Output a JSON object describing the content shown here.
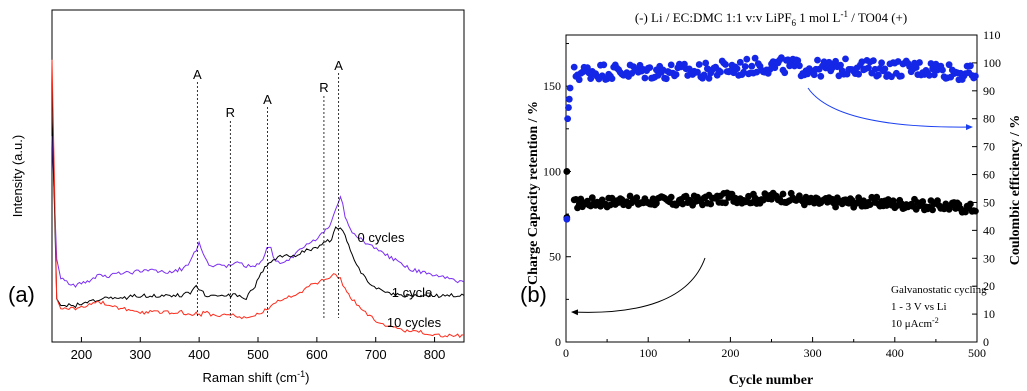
{
  "chart_data": [
    {
      "type": "line",
      "panel_label": "(a)",
      "xlabel": "Raman shift (cm",
      "xlabel_sup": "-1",
      "xlabel_end": ")",
      "ylabel": "Intensity (a.u.)",
      "xlim": [
        150,
        850
      ],
      "xticks": [
        "200",
        "300",
        "400",
        "500",
        "600",
        "700",
        "800"
      ],
      "xtick_values": [
        200,
        300,
        400,
        500,
        600,
        700,
        800
      ],
      "y_ticks_shown": false,
      "grid": false,
      "x": [
        150,
        158,
        165,
        175,
        190,
        210,
        230,
        250,
        270,
        290,
        310,
        330,
        350,
        370,
        385,
        395,
        400,
        410,
        420,
        435,
        450,
        465,
        480,
        495,
        505,
        515,
        522,
        530,
        545,
        560,
        575,
        590,
        605,
        615,
        625,
        632,
        640,
        648,
        660,
        675,
        690,
        705,
        720,
        740,
        760,
        780,
        800,
        825,
        850
      ],
      "series": [
        {
          "name": "0 cycles",
          "color": "#7b2ff2",
          "values": [
            38,
            75,
            81,
            82,
            83,
            82,
            80,
            80,
            79,
            79,
            78,
            79,
            79,
            78,
            76,
            72,
            70,
            75,
            77,
            77,
            77,
            76,
            77,
            77,
            76,
            72,
            72,
            76,
            76,
            74,
            72,
            70,
            68,
            66,
            64,
            60,
            56,
            62,
            67,
            69,
            71,
            72,
            74,
            76,
            78,
            79,
            80,
            81,
            82
          ]
        },
        {
          "name": "1 cycle",
          "color": "#000000",
          "values": [
            30,
            87,
            89,
            89,
            89,
            88,
            87,
            87,
            87,
            86,
            86,
            86,
            86,
            86,
            85,
            83,
            84,
            86,
            86,
            86,
            86,
            86,
            87,
            83,
            79,
            77,
            76,
            75,
            74,
            74,
            73,
            72,
            71,
            70,
            69,
            65,
            66,
            68,
            74,
            79,
            82,
            84,
            85,
            86,
            86,
            86,
            86,
            86,
            86
          ]
        },
        {
          "name": "10 cycles",
          "color": "#ff2a1a",
          "values": [
            15,
            87,
            90,
            90,
            90,
            89,
            88,
            89,
            90,
            91,
            91,
            91,
            91,
            91,
            92,
            91,
            92,
            91,
            92,
            92,
            92,
            92,
            93,
            92,
            91,
            90,
            89,
            88,
            87,
            86,
            85,
            83,
            82,
            81,
            80,
            80,
            81,
            84,
            87,
            90,
            92,
            94,
            95,
            96,
            97,
            97,
            98,
            98,
            98
          ]
        }
      ],
      "series_labels": [
        "0 cycles",
        "1 cycle",
        "10 cycles"
      ],
      "annotations": [
        {
          "text": "A",
          "x": 397
        },
        {
          "text": "R",
          "x": 453
        },
        {
          "text": "A",
          "x": 516
        },
        {
          "text": "R",
          "x": 612
        },
        {
          "text": "A",
          "x": 637
        }
      ]
    },
    {
      "type": "scatter",
      "panel_label": "(b)",
      "title": "(-) Li / EC:DMC 1:1 v:v LiPF",
      "title_sub": "6",
      "title_mid": " 1 mol L",
      "title_sup": "-1",
      "title_end": " / TO04 (+)",
      "xlabel": "Cycle number",
      "ylabel": "Charge Capacity retention / %",
      "y2label": "Coulombic efficiency / %",
      "xlim": [
        0,
        500
      ],
      "ylim": [
        0,
        180
      ],
      "y2lim": [
        0,
        110
      ],
      "xticks": [
        "0",
        "100",
        "200",
        "300",
        "400",
        "500"
      ],
      "xtick_values": [
        0,
        100,
        200,
        300,
        400,
        500
      ],
      "yticks": [
        "0",
        "50",
        "100",
        "150"
      ],
      "ytick_values": [
        0,
        50,
        100,
        150
      ],
      "y2ticks": [
        "0",
        "10",
        "20",
        "30",
        "40",
        "50",
        "60",
        "70",
        "80",
        "90",
        "100",
        "110"
      ],
      "y2tick_values": [
        0,
        10,
        20,
        30,
        40,
        50,
        60,
        70,
        80,
        90,
        100,
        110
      ],
      "grid": false,
      "series": [
        {
          "name": "Charge capacity retention",
          "axis": "left",
          "color": "#000000",
          "first_points": [
            [
              1,
              100
            ],
            [
              1,
              73
            ]
          ],
          "points": [
            [
              10,
              81
            ],
            [
              30,
              82
            ],
            [
              50,
              82
            ],
            [
              70,
              83
            ],
            [
              90,
              82
            ],
            [
              110,
              83
            ],
            [
              130,
              82
            ],
            [
              150,
              83
            ],
            [
              170,
              83
            ],
            [
              190,
              84
            ],
            [
              200,
              85
            ],
            [
              220,
              84
            ],
            [
              240,
              84
            ],
            [
              250,
              85
            ],
            [
              260,
              85
            ],
            [
              280,
              84
            ],
            [
              300,
              82
            ],
            [
              320,
              82
            ],
            [
              340,
              82
            ],
            [
              360,
              82
            ],
            [
              380,
              82
            ],
            [
              400,
              81
            ],
            [
              420,
              81
            ],
            [
              440,
              80
            ],
            [
              460,
              80
            ],
            [
              480,
              79
            ],
            [
              500,
              78
            ]
          ],
          "spread": 3
        },
        {
          "name": "Coulombic efficiency",
          "axis": "right",
          "color": "#1426e6",
          "first_points": [
            [
              1,
              44
            ],
            [
              2,
              80
            ],
            [
              3,
              84
            ],
            [
              4,
              87
            ],
            [
              5,
              91
            ]
          ],
          "points": [
            [
              10,
              96
            ],
            [
              30,
              97
            ],
            [
              50,
              97
            ],
            [
              70,
              97
            ],
            [
              90,
              97
            ],
            [
              110,
              97
            ],
            [
              130,
              97
            ],
            [
              150,
              97
            ],
            [
              170,
              97
            ],
            [
              190,
              98
            ],
            [
              210,
              98
            ],
            [
              230,
              99
            ],
            [
              250,
              99
            ],
            [
              270,
              99
            ],
            [
              290,
              98
            ],
            [
              310,
              98
            ],
            [
              330,
              98
            ],
            [
              350,
              99
            ],
            [
              370,
              98
            ],
            [
              390,
              98
            ],
            [
              410,
              98
            ],
            [
              430,
              98
            ],
            [
              450,
              98
            ],
            [
              470,
              97
            ],
            [
              490,
              96
            ],
            [
              500,
              96
            ]
          ],
          "spread": 3
        }
      ],
      "annotations": [
        {
          "text": "Galvanostatic cycling"
        },
        {
          "text": "1 - 3 V vs Li"
        },
        {
          "text": "10 μAcm",
          "sup": "-2"
        }
      ]
    }
  ]
}
